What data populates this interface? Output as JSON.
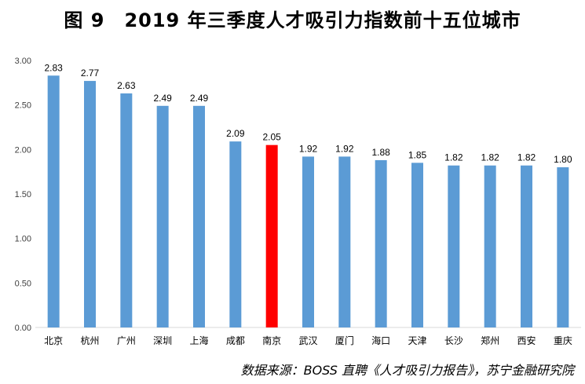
{
  "title": "图 9　2019 年三季度人才吸引力指数前十五位城市",
  "source": "数据来源：BOSS 直聘《人才吸引力报告》，苏宁金融研究院",
  "colors": {
    "bar": "#5B9BD5",
    "highlight": "#FF0000",
    "axis": "#D9D9D9"
  },
  "chart_data": {
    "type": "bar",
    "title": "图 9　2019 年三季度人才吸引力指数前十五位城市",
    "categories": [
      "北京",
      "杭州",
      "广州",
      "深圳",
      "上海",
      "成都",
      "南京",
      "武汉",
      "厦门",
      "海口",
      "天津",
      "长沙",
      "郑州",
      "西安",
      "重庆"
    ],
    "values": [
      2.83,
      2.77,
      2.63,
      2.49,
      2.49,
      2.09,
      2.05,
      1.92,
      1.92,
      1.88,
      1.85,
      1.82,
      1.82,
      1.82,
      1.8
    ],
    "value_labels": [
      "2.83",
      "2.77",
      "2.63",
      "2.49",
      "2.49",
      "2.09",
      "2.05",
      "1.92",
      "1.92",
      "1.88",
      "1.85",
      "1.82",
      "1.82",
      "1.82",
      "1.80"
    ],
    "highlight_category": "南京",
    "ylim": [
      0,
      3
    ],
    "yticks": [
      "0.00",
      "0.50",
      "1.00",
      "1.50",
      "2.00",
      "2.50",
      "3.00"
    ],
    "grid": false,
    "legend": false
  }
}
